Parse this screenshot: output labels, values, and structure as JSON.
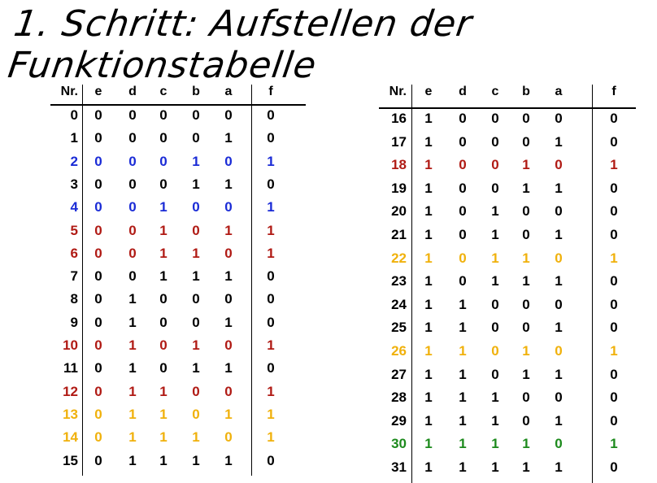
{
  "title": "1. Schritt: Aufstellen der Funktionstabelle",
  "headers": [
    "Nr.",
    "e",
    "d",
    "c",
    "b",
    "a",
    "f"
  ],
  "colors": {
    "black": "#000000",
    "blue": "#1a2bd6",
    "red": "#b01a14",
    "yellow": "#f0b10c",
    "green": "#1c8a1c"
  },
  "left_table": [
    {
      "nr": "0",
      "v": [
        "0",
        "0",
        "0",
        "0",
        "0",
        "0"
      ],
      "color": "black"
    },
    {
      "nr": "1",
      "v": [
        "0",
        "0",
        "0",
        "0",
        "1",
        "0"
      ],
      "color": "black"
    },
    {
      "nr": "2",
      "v": [
        "0",
        "0",
        "0",
        "1",
        "0",
        "1"
      ],
      "color": "blue"
    },
    {
      "nr": "3",
      "v": [
        "0",
        "0",
        "0",
        "1",
        "1",
        "0"
      ],
      "color": "black"
    },
    {
      "nr": "4",
      "v": [
        "0",
        "0",
        "1",
        "0",
        "0",
        "1"
      ],
      "color": "blue"
    },
    {
      "nr": "5",
      "v": [
        "0",
        "0",
        "1",
        "0",
        "1",
        "1"
      ],
      "color": "red"
    },
    {
      "nr": "6",
      "v": [
        "0",
        "0",
        "1",
        "1",
        "0",
        "1"
      ],
      "color": "red"
    },
    {
      "nr": "7",
      "v": [
        "0",
        "0",
        "1",
        "1",
        "1",
        "0"
      ],
      "color": "black"
    },
    {
      "nr": "8",
      "v": [
        "0",
        "1",
        "0",
        "0",
        "0",
        "0"
      ],
      "color": "black"
    },
    {
      "nr": "9",
      "v": [
        "0",
        "1",
        "0",
        "0",
        "1",
        "0"
      ],
      "color": "black"
    },
    {
      "nr": "10",
      "v": [
        "0",
        "1",
        "0",
        "1",
        "0",
        "1"
      ],
      "color": "red"
    },
    {
      "nr": "11",
      "v": [
        "0",
        "1",
        "0",
        "1",
        "1",
        "0"
      ],
      "color": "black"
    },
    {
      "nr": "12",
      "v": [
        "0",
        "1",
        "1",
        "0",
        "0",
        "1"
      ],
      "color": "red"
    },
    {
      "nr": "13",
      "v": [
        "0",
        "1",
        "1",
        "0",
        "1",
        "1"
      ],
      "color": "yellow"
    },
    {
      "nr": "14",
      "v": [
        "0",
        "1",
        "1",
        "1",
        "0",
        "1"
      ],
      "color": "yellow"
    },
    {
      "nr": "15",
      "v": [
        "0",
        "1",
        "1",
        "1",
        "1",
        "0"
      ],
      "color": "black"
    }
  ],
  "right_table": [
    {
      "nr": "16",
      "v": [
        "1",
        "0",
        "0",
        "0",
        "0",
        "0"
      ],
      "color": "black"
    },
    {
      "nr": "17",
      "v": [
        "1",
        "0",
        "0",
        "0",
        "1",
        "0"
      ],
      "color": "black"
    },
    {
      "nr": "18",
      "v": [
        "1",
        "0",
        "0",
        "1",
        "0",
        "1"
      ],
      "color": "red"
    },
    {
      "nr": "19",
      "v": [
        "1",
        "0",
        "0",
        "1",
        "1",
        "0"
      ],
      "color": "black"
    },
    {
      "nr": "20",
      "v": [
        "1",
        "0",
        "1",
        "0",
        "0",
        "0"
      ],
      "color": "black"
    },
    {
      "nr": "21",
      "v": [
        "1",
        "0",
        "1",
        "0",
        "1",
        "0"
      ],
      "color": "black"
    },
    {
      "nr": "22",
      "v": [
        "1",
        "0",
        "1",
        "1",
        "0",
        "1"
      ],
      "color": "yellow"
    },
    {
      "nr": "23",
      "v": [
        "1",
        "0",
        "1",
        "1",
        "1",
        "0"
      ],
      "color": "black"
    },
    {
      "nr": "24",
      "v": [
        "1",
        "1",
        "0",
        "0",
        "0",
        "0"
      ],
      "color": "black"
    },
    {
      "nr": "25",
      "v": [
        "1",
        "1",
        "0",
        "0",
        "1",
        "0"
      ],
      "color": "black"
    },
    {
      "nr": "26",
      "v": [
        "1",
        "1",
        "0",
        "1",
        "0",
        "1"
      ],
      "color": "yellow"
    },
    {
      "nr": "27",
      "v": [
        "1",
        "1",
        "0",
        "1",
        "1",
        "0"
      ],
      "color": "black"
    },
    {
      "nr": "28",
      "v": [
        "1",
        "1",
        "1",
        "0",
        "0",
        "0"
      ],
      "color": "black"
    },
    {
      "nr": "29",
      "v": [
        "1",
        "1",
        "1",
        "0",
        "1",
        "0"
      ],
      "color": "black"
    },
    {
      "nr": "30",
      "v": [
        "1",
        "1",
        "1",
        "1",
        "0",
        "1"
      ],
      "color": "green"
    },
    {
      "nr": "31",
      "v": [
        "1",
        "1",
        "1",
        "1",
        "1",
        "0"
      ],
      "color": "black"
    }
  ]
}
